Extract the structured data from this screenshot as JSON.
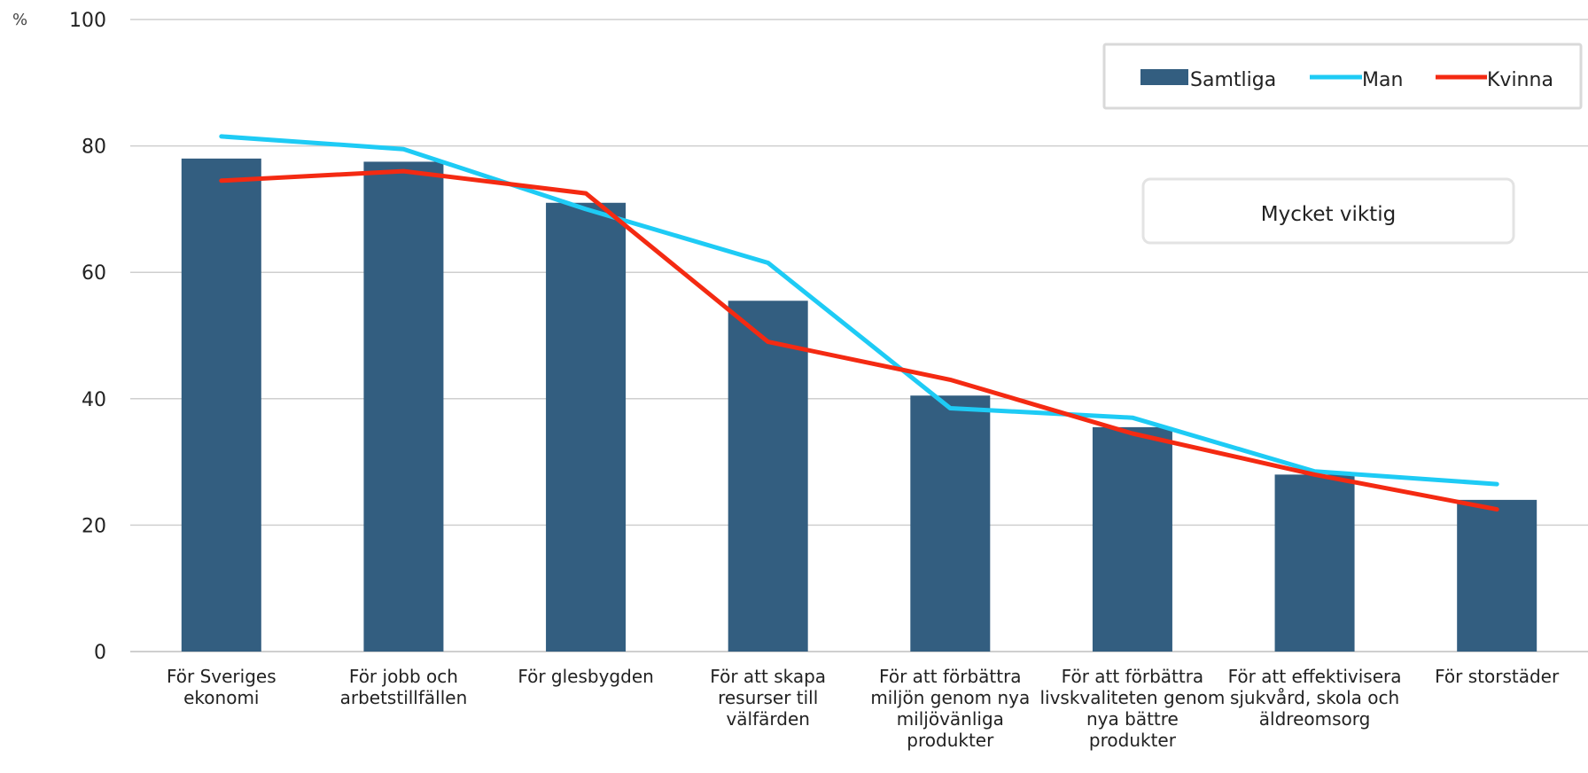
{
  "chart_data": {
    "type": "bar",
    "unit_label": "%",
    "ylim": [
      0,
      100
    ],
    "yticks": [
      0,
      20,
      40,
      60,
      80,
      100
    ],
    "grid": true,
    "legend_position": "top-right",
    "annotation": "Mycket viktig",
    "categories": [
      [
        "För Sveriges",
        "ekonomi"
      ],
      [
        "För jobb och",
        "arbetstillfällen"
      ],
      [
        "För glesbygden"
      ],
      [
        "För att skapa",
        "resurser till",
        "välfärden"
      ],
      [
        "För att förbättra",
        "miljön genom nya",
        "miljövänliga",
        "produkter"
      ],
      [
        "För att förbättra",
        "livskvaliteten genom",
        "nya bättre",
        "produkter"
      ],
      [
        "För att effektivisera",
        "sjukvård, skola och",
        "äldreomsorg"
      ],
      [
        "För storstäder"
      ]
    ],
    "series": [
      {
        "name": "Samtliga",
        "kind": "bar",
        "color": "#335e80",
        "values": [
          78,
          77.5,
          71,
          55.5,
          40.5,
          35.5,
          28,
          24
        ]
      },
      {
        "name": "Man",
        "kind": "line",
        "color": "#1ecbf5",
        "values": [
          81.5,
          79.5,
          70,
          61.5,
          38.5,
          37,
          28.5,
          26.5
        ]
      },
      {
        "name": "Kvinna",
        "kind": "line",
        "color": "#f42a12",
        "values": [
          74.5,
          76,
          72.5,
          49,
          43,
          34.5,
          28,
          22.5
        ]
      }
    ]
  }
}
